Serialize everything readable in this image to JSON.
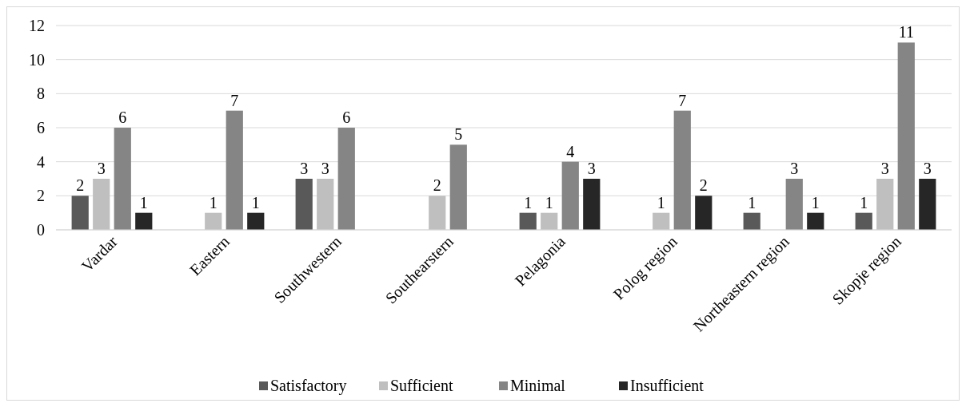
{
  "chart_data": {
    "type": "bar",
    "categories": [
      "Vardar",
      "Eastern",
      "Southwestern",
      "Southearstern",
      "Pelagonia",
      "Polog region",
      "Northeastern region",
      "Skopje region"
    ],
    "series": [
      {
        "name": "Satisfactory",
        "color": "#595959",
        "values": [
          2,
          null,
          3,
          null,
          1,
          null,
          1,
          1
        ]
      },
      {
        "name": "Sufficient",
        "color": "#bfbfbf",
        "values": [
          3,
          1,
          3,
          2,
          1,
          1,
          null,
          3
        ]
      },
      {
        "name": "Minimal",
        "color": "#858585",
        "values": [
          6,
          7,
          6,
          5,
          4,
          7,
          3,
          11
        ]
      },
      {
        "name": "Insufficient",
        "color": "#262626",
        "values": [
          1,
          1,
          null,
          null,
          3,
          2,
          1,
          3
        ]
      }
    ],
    "ylim": [
      0,
      12
    ],
    "yticks": [
      0,
      2,
      4,
      6,
      8,
      10,
      12
    ],
    "grid": "y",
    "legend": "bottom",
    "data_labels": true
  }
}
